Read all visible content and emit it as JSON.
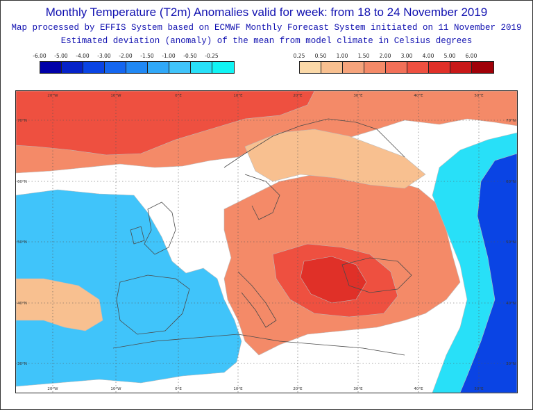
{
  "header": {
    "title": "Monthly Temperature (T2m) Anomalies valid for week: from 18 to 24 November 2019",
    "subtitle": "Map processed by EFFIS System based on ECMWF Monthly Forecast System initiated on 11 November 2019",
    "caption": "Estimated deviation (anomaly) of the mean from model climate in Celsius degrees"
  },
  "legend_cold": {
    "labels": [
      "-6.00",
      "-5.00",
      "-4.00",
      "-3.00",
      "-2.00",
      "-1.50",
      "-1.00",
      "-0.50",
      "-0.25"
    ],
    "colors": [
      "#0000a8",
      "#0522c8",
      "#0a44e4",
      "#1466f0",
      "#2088f4",
      "#30a8f8",
      "#40c4fa",
      "#28e0f8",
      "#10f4f4"
    ]
  },
  "legend_warm": {
    "labels": [
      "0.25",
      "0.50",
      "1.00",
      "1.50",
      "2.00",
      "3.00",
      "4.00",
      "5.00",
      "6.00"
    ],
    "colors": [
      "#fbd9a8",
      "#f8c090",
      "#f6a47c",
      "#f48a68",
      "#f27058",
      "#ee5040",
      "#e03028",
      "#c81818",
      "#a00008"
    ]
  },
  "map": {
    "lon_labels": [
      "20°W",
      "10°W",
      "0°E",
      "10°E",
      "20°E",
      "30°E",
      "40°E",
      "50°E"
    ],
    "lat_labels": [
      "70°N",
      "60°N",
      "50°N",
      "40°N",
      "30°N"
    ],
    "colors": {
      "neutral": "#ffffff",
      "warm_light": "#f8c090",
      "warm_mid": "#f48a68",
      "warm_strong": "#ee5040",
      "warm_peak": "#e03028",
      "cold_light": "#28e0f8",
      "cold_mid": "#40c4fa",
      "cold_strong": "#2088f4",
      "cold_deep": "#0a44e4",
      "coast": "#4a4a4a",
      "grid": "#555555"
    }
  }
}
